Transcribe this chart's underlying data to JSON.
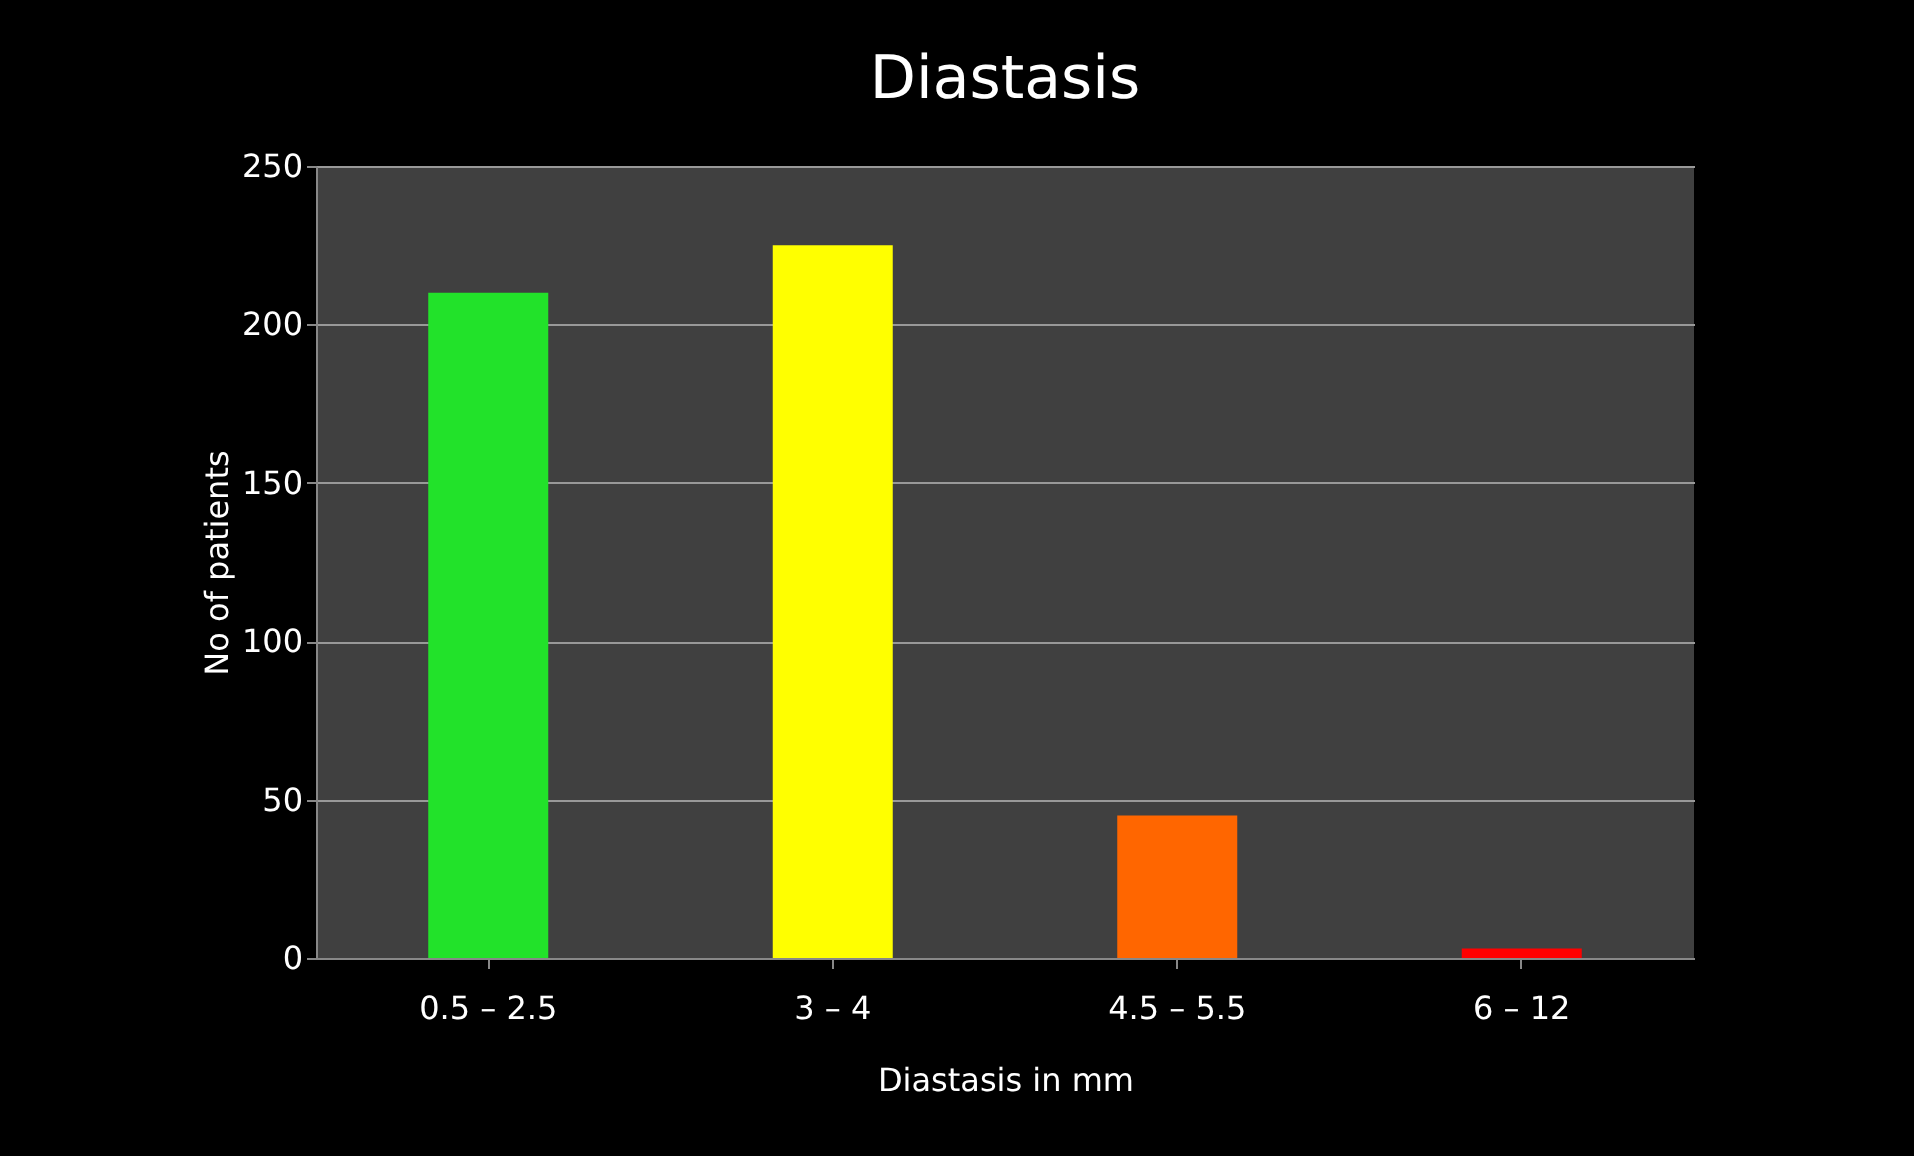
{
  "chart_data": {
    "type": "bar",
    "title": "Diastasis",
    "xlabel": "Diastasis in mm",
    "ylabel": "No of patients",
    "categories": [
      "0.5 – 2.5",
      "3 – 4",
      "4.5 – 5.5",
      "6 – 12"
    ],
    "values": [
      210,
      225,
      45,
      3
    ],
    "colors": [
      "#22e22a",
      "#ffff00",
      "#ff6600",
      "#ff0000"
    ],
    "ylim": [
      0,
      250
    ],
    "yticks": [
      0,
      50,
      100,
      150,
      200,
      250
    ],
    "grid": "y"
  }
}
